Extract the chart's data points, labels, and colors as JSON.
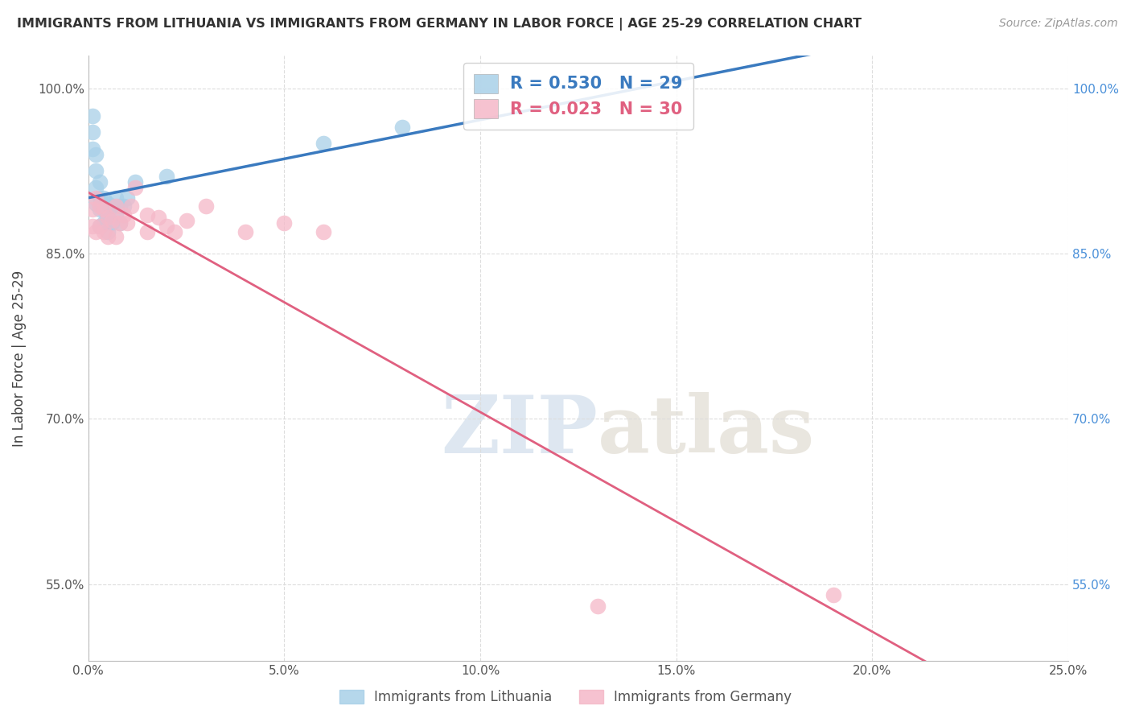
{
  "title": "IMMIGRANTS FROM LITHUANIA VS IMMIGRANTS FROM GERMANY IN LABOR FORCE | AGE 25-29 CORRELATION CHART",
  "source": "Source: ZipAtlas.com",
  "ylabel": "In Labor Force | Age 25-29",
  "xlim": [
    0.0,
    0.25
  ],
  "ylim": [
    0.48,
    1.03
  ],
  "yticks": [
    0.55,
    0.7,
    0.85,
    1.0
  ],
  "xticks": [
    0.0,
    0.05,
    0.1,
    0.15,
    0.2,
    0.25
  ],
  "blue_R": 0.53,
  "blue_N": 29,
  "pink_R": 0.023,
  "pink_N": 30,
  "blue_label": "Immigrants from Lithuania",
  "pink_label": "Immigrants from Germany",
  "blue_color": "#a8d0e8",
  "pink_color": "#f5b8c8",
  "blue_line_color": "#3a7abf",
  "pink_line_color": "#e06080",
  "watermark_zip": "ZIP",
  "watermark_atlas": "atlas",
  "blue_x": [
    0.001,
    0.001,
    0.001,
    0.002,
    0.002,
    0.002,
    0.002,
    0.003,
    0.003,
    0.003,
    0.003,
    0.004,
    0.004,
    0.004,
    0.005,
    0.005,
    0.005,
    0.006,
    0.006,
    0.007,
    0.007,
    0.008,
    0.008,
    0.009,
    0.01,
    0.012,
    0.02,
    0.06,
    0.08
  ],
  "blue_y": [
    0.975,
    0.96,
    0.945,
    0.94,
    0.925,
    0.91,
    0.895,
    0.915,
    0.9,
    0.89,
    0.875,
    0.9,
    0.89,
    0.878,
    0.895,
    0.883,
    0.87,
    0.893,
    0.878,
    0.9,
    0.885,
    0.893,
    0.878,
    0.893,
    0.9,
    0.915,
    0.92,
    0.95,
    0.965
  ],
  "pink_x": [
    0.001,
    0.001,
    0.002,
    0.002,
    0.003,
    0.003,
    0.004,
    0.004,
    0.005,
    0.005,
    0.006,
    0.007,
    0.007,
    0.008,
    0.009,
    0.01,
    0.011,
    0.012,
    0.015,
    0.015,
    0.018,
    0.02,
    0.022,
    0.025,
    0.03,
    0.04,
    0.05,
    0.06,
    0.13,
    0.19
  ],
  "pink_y": [
    0.89,
    0.875,
    0.9,
    0.87,
    0.893,
    0.875,
    0.89,
    0.87,
    0.883,
    0.865,
    0.88,
    0.893,
    0.865,
    0.878,
    0.885,
    0.878,
    0.893,
    0.91,
    0.885,
    0.87,
    0.883,
    0.875,
    0.87,
    0.88,
    0.893,
    0.87,
    0.878,
    0.87,
    0.53,
    0.54
  ]
}
